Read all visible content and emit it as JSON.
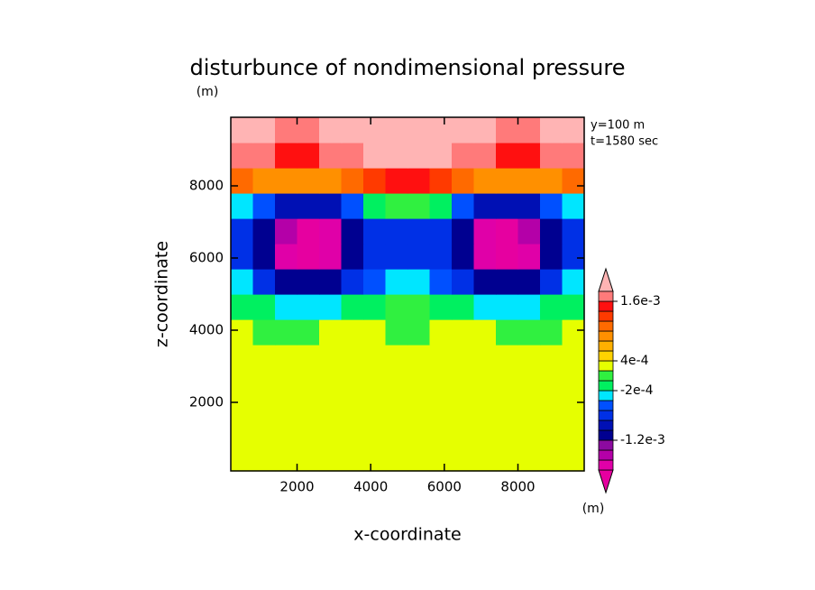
{
  "chart_data": {
    "type": "contour",
    "title": "disturbunce of nondimensional pressure",
    "y_unit": "(m)",
    "annotations": [
      "y=100 m",
      "t=1580 sec"
    ],
    "xlabel": "x-coordinate",
    "ylabel": "z-coordinate",
    "xlim": [
      200,
      9800
    ],
    "ylim": [
      100,
      9900
    ],
    "xticks": [
      2000,
      4000,
      6000,
      8000
    ],
    "yticks": [
      2000,
      4000,
      6000,
      8000
    ],
    "x": [
      500,
      1100,
      1700,
      2300,
      2900,
      3500,
      4100,
      4700,
      5300,
      5900,
      6500,
      7100,
      7700,
      8300,
      8900,
      9500
    ],
    "y": [
      450,
      1150,
      1850,
      2550,
      3250,
      3950,
      4650,
      5350,
      6050,
      6750,
      7450,
      8150,
      8850,
      9550
    ],
    "z": [
      [
        0.0003,
        0.0003,
        0.0003,
        0.0003,
        0.0003,
        0.0003,
        0.0003,
        0.0003,
        0.0003,
        0.0003,
        0.0003,
        0.0003,
        0.0003,
        0.0003,
        0.0003,
        0.0003
      ],
      [
        0.0003,
        0.0003,
        0.0003,
        0.0003,
        0.0003,
        0.0003,
        0.0003,
        0.0003,
        0.0003,
        0.0003,
        0.0003,
        0.0003,
        0.0003,
        0.0003,
        0.0003,
        0.0003
      ],
      [
        0.0003,
        0.0003,
        0.0003,
        0.0003,
        0.0003,
        0.0003,
        0.0003,
        0.0003,
        0.0003,
        0.0003,
        0.0003,
        0.0003,
        0.0003,
        0.0003,
        0.0003,
        0.0003
      ],
      [
        0.0003,
        0.0003,
        0.0003,
        0.0003,
        0.0003,
        0.0003,
        0.0003,
        0.0003,
        0.0003,
        0.0003,
        0.0003,
        0.0003,
        0.0003,
        0.0003,
        0.0003,
        0.0003
      ],
      [
        0.0003,
        0.0003,
        0.0003,
        0.0003,
        0.0003,
        0.0003,
        0.0003,
        0.0003,
        0.0003,
        0.0003,
        0.0003,
        0.0003,
        0.0003,
        0.0003,
        0.0003,
        0.0003
      ],
      [
        0.0002,
        0.0001,
        0.0001,
        0.0001,
        0.0002,
        0.0002,
        0.0002,
        0.0001,
        0.0001,
        0.0002,
        0.0002,
        0.0002,
        0.0001,
        0.0001,
        0.0001,
        0.0002
      ],
      [
        -0.0001,
        -0.0002,
        -0.0003,
        -0.0003,
        -0.0003,
        -0.0002,
        -0.0001,
        0.0001,
        0.0001,
        -0.0001,
        -0.0002,
        -0.0003,
        -0.0003,
        -0.0003,
        -0.0002,
        -0.0001
      ],
      [
        -0.0003,
        -0.0007,
        -0.0011,
        -0.0012,
        -0.0011,
        -0.0008,
        -0.0005,
        -0.0003,
        -0.0003,
        -0.0005,
        -0.0008,
        -0.0011,
        -0.0012,
        -0.0011,
        -0.0007,
        -0.0003
      ],
      [
        -0.0007,
        -0.0012,
        -0.0018,
        -0.002,
        -0.0018,
        -0.0012,
        -0.0008,
        -0.0007,
        -0.0007,
        -0.0008,
        -0.0012,
        -0.0018,
        -0.002,
        -0.0018,
        -0.0012,
        -0.0007
      ],
      [
        -0.0007,
        -0.0011,
        -0.0016,
        -0.0019,
        -0.0017,
        -0.0012,
        -0.0008,
        -0.0007,
        -0.0007,
        -0.0008,
        -0.0012,
        -0.0017,
        -0.0019,
        -0.0016,
        -0.0011,
        -0.0007
      ],
      [
        -0.0003,
        -0.0006,
        -0.0009,
        -0.001,
        -0.0009,
        -0.0006,
        -0.0002,
        0.0001,
        0.0001,
        -0.0002,
        -0.0006,
        -0.0009,
        -0.001,
        -0.0009,
        -0.0006,
        -0.0003
      ],
      [
        0.001,
        0.0009,
        0.0008,
        0.0008,
        0.0009,
        0.0011,
        0.0013,
        0.0014,
        0.0014,
        0.0013,
        0.0011,
        0.0009,
        0.0008,
        0.0008,
        0.0009,
        0.001
      ],
      [
        0.0017,
        0.0017,
        0.0015,
        0.0015,
        0.0016,
        0.0017,
        0.0019,
        0.0019,
        0.0019,
        0.0019,
        0.0017,
        0.0016,
        0.0015,
        0.0015,
        0.0017,
        0.0017
      ],
      [
        0.0019,
        0.0019,
        0.0017,
        0.0017,
        0.0019,
        0.0019,
        0.0019,
        0.0019,
        0.0019,
        0.0019,
        0.0019,
        0.0019,
        0.0017,
        0.0017,
        0.0019,
        0.0019
      ]
    ],
    "levels": [
      -0.0018,
      -0.0016,
      -0.0014,
      -0.0012,
      -0.001,
      -0.0008,
      -0.0006,
      -0.0004,
      -0.0002,
      0,
      0.0002,
      0.0004,
      0.0006,
      0.0008,
      0.001,
      0.0012,
      0.0014,
      0.0016,
      0.0018
    ],
    "colors": [
      "#e600a0",
      "#e000a8",
      "#b400a8",
      "#8c0aa0",
      "#000090",
      "#0010b4",
      "#0030e6",
      "#0050ff",
      "#00e6ff",
      "#00f060",
      "#30f040",
      "#e6ff00",
      "#ffd200",
      "#ffb000",
      "#ff9000",
      "#ff6a00",
      "#ff3a00",
      "#ff1010",
      "#ff7a7a",
      "#ffb4b4"
    ],
    "cbar_ticks": [
      {
        "value": 0.0016,
        "label": "1.6e-3"
      },
      {
        "value": 0.0004,
        "label": "4e-4"
      },
      {
        "value": -0.0002,
        "label": "-2e-4"
      },
      {
        "value": -0.0012,
        "label": "-1.2e-3"
      }
    ],
    "cbar_unit": "(m)"
  }
}
